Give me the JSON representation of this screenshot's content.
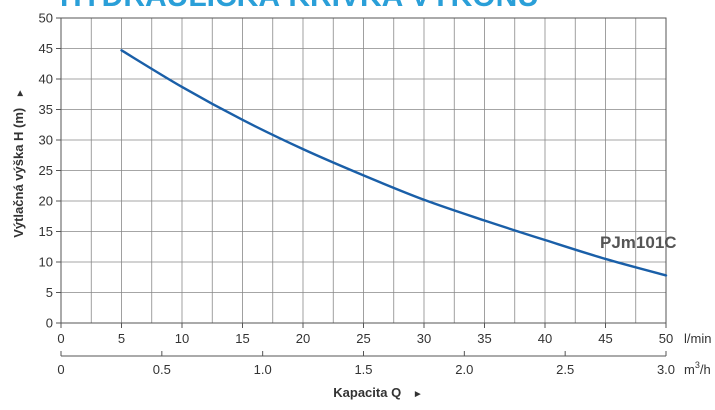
{
  "header": {
    "title": "HYDRAULICKÁ KRIVKA VÝKONU",
    "color": "#2a9fd8"
  },
  "colors": {
    "line": "#1a5fa8",
    "grid": "#888888",
    "axis": "#555555",
    "text": "#333333"
  },
  "chart_data": {
    "type": "line",
    "ylabel": "Výtlačná výška H (m)",
    "ylabel_arrow": "►",
    "xlabel": "Kapacita Q",
    "xlabel_arrow": "►",
    "x_unit_primary": "l/min",
    "x_unit_secondary": "m",
    "x_unit_secondary_sup": "3",
    "x_unit_secondary_tail": "/h",
    "xlim": [
      0,
      50
    ],
    "ylim": [
      0,
      50
    ],
    "x_minor_step": 2.5,
    "y_minor_step": 5,
    "xticks_primary": [
      "0",
      "5",
      "10",
      "15",
      "20",
      "25",
      "30",
      "35",
      "40",
      "45",
      "50"
    ],
    "xticks_secondary": [
      "0",
      "0.5",
      "1.0",
      "1.5",
      "2.0",
      "2.5",
      "3.0"
    ],
    "yticks": [
      "0",
      "5",
      "10",
      "15",
      "20",
      "25",
      "30",
      "35",
      "40",
      "45",
      "50"
    ],
    "grid": true,
    "series": [
      {
        "name": "PJm101C",
        "x": [
          5,
          10,
          15,
          20,
          25,
          30,
          35,
          40,
          45,
          50
        ],
        "y": [
          44.7,
          38.7,
          33.3,
          28.5,
          24.2,
          20.2,
          16.8,
          13.6,
          10.5,
          7.8
        ]
      }
    ]
  }
}
